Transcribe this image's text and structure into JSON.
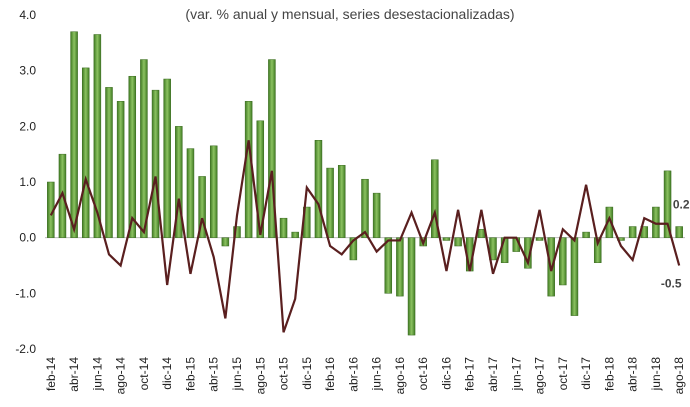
{
  "chart_data": {
    "type": "bar-line",
    "title": "(var. % anual y mensual, series desestacionalizadas)",
    "categories": [
      "feb-14",
      null,
      "abr-14",
      null,
      "jun-14",
      null,
      "ago-14",
      null,
      "oct-14",
      null,
      "dic-14",
      null,
      "feb-15",
      null,
      "abr-15",
      null,
      "jun-15",
      null,
      "ago-15",
      null,
      "oct-15",
      null,
      "dic-15",
      null,
      "feb-16",
      null,
      "abr-16",
      null,
      "jun-16",
      null,
      "ago-16",
      null,
      "oct-16",
      null,
      "dic-16",
      null,
      "feb-17",
      null,
      "abr-17",
      null,
      "jun-17",
      null,
      "ago-17",
      null,
      "oct-17",
      null,
      "dic-17",
      null,
      "feb-18",
      null,
      "abr-18",
      null,
      "jun-18",
      null,
      "ago-18"
    ],
    "series": [
      {
        "type": "bar",
        "color": "#5b9a37",
        "values": [
          1.0,
          1.5,
          3.7,
          3.05,
          3.65,
          2.7,
          2.45,
          2.9,
          3.2,
          2.65,
          2.85,
          2.0,
          1.6,
          1.1,
          1.65,
          -0.15,
          0.2,
          2.45,
          2.1,
          3.2,
          0.35,
          0.1,
          0.55,
          1.75,
          1.25,
          1.3,
          -0.4,
          1.05,
          0.8,
          -1.0,
          -1.05,
          -1.75,
          -0.15,
          1.4,
          -0.05,
          -0.15,
          -0.6,
          0.15,
          -0.4,
          -0.45,
          -0.25,
          -0.55,
          -0.05,
          -1.05,
          -0.85,
          -1.4,
          0.1,
          -0.45,
          0.55,
          -0.05,
          0.2,
          0.2,
          0.55,
          1.2,
          0.2
        ]
      },
      {
        "type": "line",
        "color": "#5a1f1f",
        "values": [
          0.4,
          0.8,
          0.15,
          1.05,
          0.45,
          -0.3,
          -0.5,
          0.35,
          0.1,
          1.1,
          -0.85,
          0.7,
          -0.65,
          0.35,
          -0.35,
          -1.45,
          0.4,
          1.75,
          0.05,
          1.2,
          -1.7,
          -1.1,
          0.9,
          0.6,
          -0.15,
          -0.3,
          -0.05,
          0.1,
          -0.25,
          -0.05,
          -0.05,
          0.45,
          -0.1,
          0.45,
          -0.6,
          0.5,
          -0.6,
          0.5,
          -0.65,
          0.0,
          0.0,
          -0.45,
          0.5,
          -0.6,
          0.15,
          -0.05,
          0.95,
          -0.1,
          0.35,
          -0.15,
          -0.4,
          0.35,
          0.25,
          0.25,
          -0.5
        ]
      }
    ],
    "ylim": [
      -2.0,
      4.0
    ],
    "yticks": [
      {
        "value": -2,
        "label": "-2.0"
      },
      {
        "value": -1,
        "label": "-1.0"
      },
      {
        "value": 0,
        "label": "0.0"
      },
      {
        "value": 1,
        "label": "1.0"
      },
      {
        "value": 2,
        "label": "2.0"
      },
      {
        "value": 3,
        "label": "3.0"
      },
      {
        "value": 4,
        "label": "4.0"
      }
    ]
  }
}
